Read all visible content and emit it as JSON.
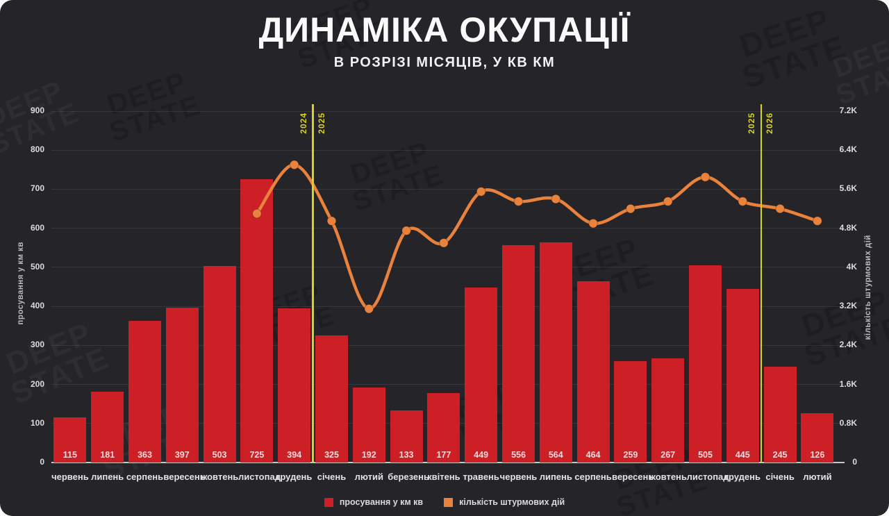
{
  "brand": {
    "name": "DEEP STATE",
    "watermark_line1": "DEEP",
    "watermark_line2": "STATE"
  },
  "header": {
    "title": "ДИНАМІКА ОКУПАЦІЇ",
    "subtitle": "В РОЗРІЗІ МІСЯЦІВ, У КВ КМ"
  },
  "colors": {
    "background": "#242429",
    "bar_red": "#cc1f26",
    "line_orange": "#e8823c",
    "divider_yellow": "#d8d31d"
  },
  "chart_data": {
    "type": "bar+line",
    "title": "ДИНАМІКА ОКУПАЦІЇ",
    "subtitle": "В РОЗРІЗІ МІСЯЦІВ, У КВ КМ",
    "grid": true,
    "legend_position": "bottom",
    "categories": [
      "червень",
      "липень",
      "серпень",
      "вересень",
      "жовтень",
      "листопад",
      "грудень",
      "січень",
      "лютий",
      "березень",
      "квітень",
      "травень",
      "червень",
      "липень",
      "серпень",
      "вересень",
      "жовтень",
      "листопад",
      "грудень",
      "січень",
      "лютий"
    ],
    "series": [
      {
        "name": "просування у км кв",
        "type": "bar",
        "axis": "left",
        "color": "#cc1f26",
        "values": [
          115,
          181,
          363,
          397,
          503,
          725,
          394,
          325,
          192,
          133,
          177,
          449,
          556,
          564,
          464,
          259,
          267,
          505,
          445,
          245,
          126
        ]
      },
      {
        "name": "кількість штурмових дій",
        "type": "line",
        "axis": "right",
        "color": "#e8823c",
        "values": [
          null,
          null,
          null,
          null,
          null,
          5100,
          6100,
          4950,
          3150,
          4750,
          4500,
          5550,
          5350,
          5400,
          4900,
          5200,
          5350,
          5850,
          5350,
          5200,
          4950
        ]
      }
    ],
    "left_axis": {
      "label": "просування у км кв",
      "min": 0,
      "max": 900,
      "step": 100,
      "ticks": [
        "0",
        "100",
        "200",
        "300",
        "400",
        "500",
        "600",
        "700",
        "800",
        "900"
      ]
    },
    "right_axis": {
      "label": "кількість штурмових дій",
      "min": 0,
      "max": 7200,
      "step": 800,
      "ticks": [
        "0",
        "0.8K",
        "1.6K",
        "2.4K",
        "3.2K",
        "4K",
        "4.8K",
        "5.6K",
        "6.4K",
        "7.2K"
      ]
    },
    "year_dividers": [
      {
        "after_index": 6,
        "left_label": "2024",
        "right_label": "2025",
        "color": "#d8d31d"
      },
      {
        "after_index": 18,
        "left_label": "2025",
        "right_label": "2026",
        "color": "#d8d31d"
      }
    ],
    "legend": [
      {
        "label": "просування у км кв",
        "color": "#cc1f26"
      },
      {
        "label": "кількість штурмових дій",
        "color": "#e8823c"
      }
    ]
  }
}
